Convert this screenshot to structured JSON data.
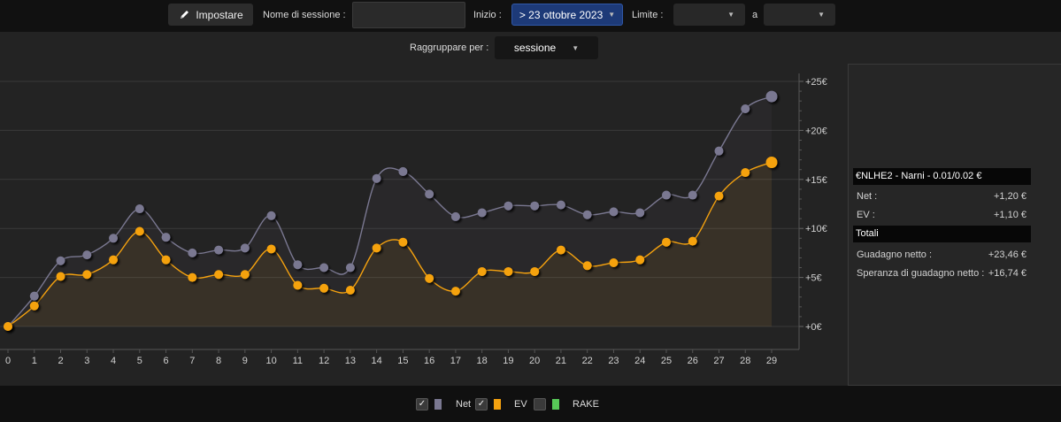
{
  "toolbar": {
    "set_label": "Impostare",
    "session_name_label": "Nome di sessione :",
    "session_name_value": "",
    "start_label": "Inizio :",
    "start_value": "> 23 ottobre 2023",
    "limit_label": "Limite :",
    "limit_value": "",
    "to_label": "a",
    "to_value": ""
  },
  "grouping": {
    "label": "Raggruppare per :",
    "value": "sessione"
  },
  "stats": {
    "game_header": "€NLHE2 - Narni - 0.01/0.02 €",
    "net_label": "Net :",
    "net_value": "+1,20 €",
    "ev_label": "EV :",
    "ev_value": "+1,10 €",
    "totals_header": "Totali",
    "net_total_label": "Guadagno netto :",
    "net_total_value": "+23,46 €",
    "ev_total_label": "Speranza di guadagno netto :",
    "ev_total_value": "+16,74 €"
  },
  "legend": [
    {
      "label": "Net",
      "checked": true,
      "color": "#7a7891"
    },
    {
      "label": "EV",
      "checked": true,
      "color": "#f5a20f"
    },
    {
      "label": "RAKE",
      "checked": false,
      "color": "#57c957"
    }
  ],
  "chart_data": {
    "type": "line",
    "x": [
      0,
      1,
      2,
      3,
      4,
      5,
      6,
      7,
      8,
      9,
      10,
      11,
      12,
      13,
      14,
      15,
      16,
      17,
      18,
      19,
      20,
      21,
      22,
      23,
      24,
      25,
      26,
      27,
      28,
      29
    ],
    "ylim": [
      -2,
      25
    ],
    "yticks": [
      0,
      5,
      10,
      15,
      20,
      25
    ],
    "ytick_labels": [
      "+0€",
      "+5€",
      "+10€",
      "+15€",
      "+20€",
      "+25€"
    ],
    "grid": true,
    "series": [
      {
        "name": "Net",
        "color": "#7a7891",
        "values": [
          0.0,
          3.1,
          6.7,
          7.3,
          9.0,
          12.0,
          9.1,
          7.5,
          7.8,
          8.0,
          11.3,
          6.3,
          6.0,
          6.0,
          15.1,
          15.8,
          13.5,
          11.2,
          11.6,
          12.3,
          12.3,
          12.4,
          11.4,
          11.7,
          11.6,
          13.4,
          13.4,
          17.9,
          22.2,
          23.46
        ]
      },
      {
        "name": "EV",
        "color": "#f5a20f",
        "values": [
          0.0,
          2.1,
          5.1,
          5.3,
          6.8,
          9.7,
          6.8,
          5.0,
          5.3,
          5.3,
          7.9,
          4.2,
          3.9,
          3.7,
          8.0,
          8.6,
          4.9,
          3.6,
          5.6,
          5.6,
          5.6,
          7.8,
          6.2,
          6.5,
          6.8,
          8.6,
          8.7,
          13.3,
          15.7,
          16.74
        ]
      }
    ]
  }
}
